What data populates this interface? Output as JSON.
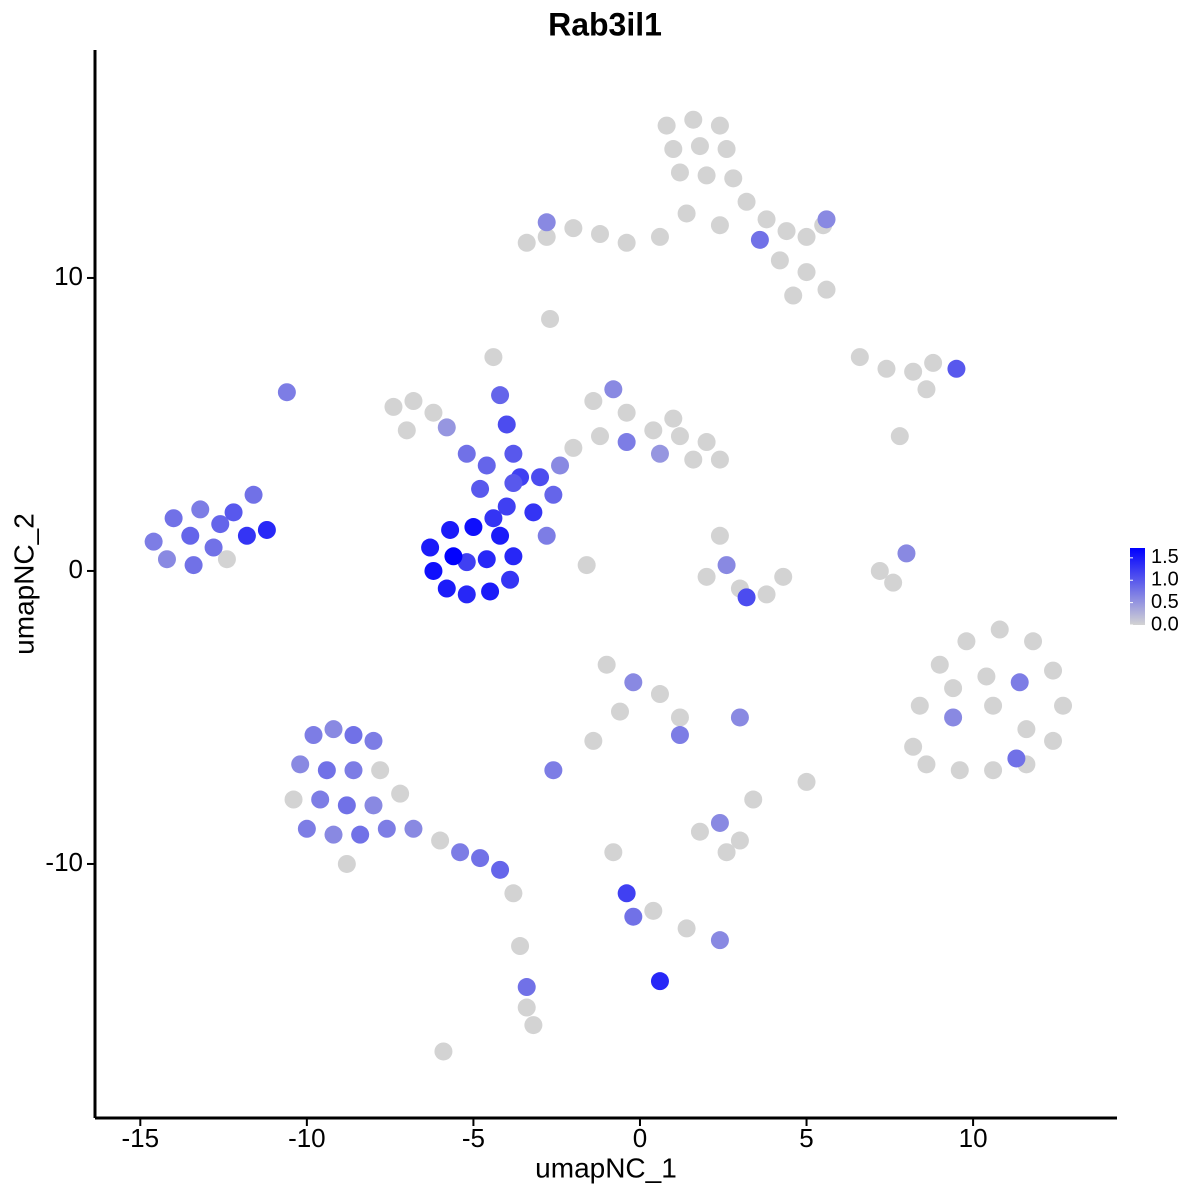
{
  "chart_data": {
    "type": "scatter",
    "title": "Rab3il1",
    "x_label": "umapNC_1",
    "y_label": "umapNC_2",
    "xlim": [
      -16.36,
      14.32
    ],
    "ylim": [
      -18.67,
      17.78
    ],
    "xticks": [
      -15,
      -10,
      -5,
      0,
      5,
      10
    ],
    "yticks": [
      -10,
      0,
      10
    ],
    "color_scale": {
      "low": "#d3d3d3",
      "high": "#0000ff",
      "lim": [
        0,
        1.72
      ],
      "ticks": [
        {
          "value": 0,
          "label": "0.0"
        },
        {
          "value": 0.5,
          "label": "0.5"
        },
        {
          "value": 1,
          "label": "1.0"
        },
        {
          "value": 1.5,
          "label": "1.5"
        }
      ]
    },
    "points": [
      [
        0.8,
        15.2,
        0
      ],
      [
        1.6,
        15.4,
        0
      ],
      [
        2.4,
        15.2,
        0
      ],
      [
        1.0,
        14.4,
        0
      ],
      [
        1.8,
        14.5,
        0
      ],
      [
        2.6,
        14.4,
        0
      ],
      [
        1.2,
        13.6,
        0
      ],
      [
        2.0,
        13.5,
        0
      ],
      [
        2.8,
        13.4,
        0
      ],
      [
        3.2,
        12.6,
        0
      ],
      [
        3.8,
        12.0,
        0
      ],
      [
        4.4,
        11.6,
        0
      ],
      [
        5.0,
        11.4,
        0
      ],
      [
        5.5,
        11.8,
        0
      ],
      [
        4.2,
        10.6,
        0
      ],
      [
        5.0,
        10.2,
        0
      ],
      [
        5.6,
        9.6,
        0
      ],
      [
        4.6,
        9.4,
        0
      ],
      [
        2.4,
        11.8,
        0
      ],
      [
        1.4,
        12.2,
        0
      ],
      [
        0.6,
        11.4,
        0
      ],
      [
        -0.4,
        11.2,
        0
      ],
      [
        -1.2,
        11.5,
        0
      ],
      [
        -2.0,
        11.7,
        0
      ],
      [
        -2.8,
        11.4,
        0
      ],
      [
        -3.4,
        11.2,
        0
      ],
      [
        -2.8,
        11.9,
        0.6
      ],
      [
        3.6,
        11.3,
        0.8
      ],
      [
        5.6,
        12.0,
        0.6
      ],
      [
        -2.7,
        8.6,
        0
      ],
      [
        -7.4,
        5.6,
        0
      ],
      [
        -6.8,
        5.8,
        0
      ],
      [
        -6.2,
        5.4,
        0
      ],
      [
        -7.0,
        4.8,
        0
      ],
      [
        -5.8,
        4.9,
        0.5
      ],
      [
        -4.4,
        7.3,
        0
      ],
      [
        -4.2,
        6.0,
        0.9
      ],
      [
        -4.0,
        5.0,
        1.1
      ],
      [
        -3.8,
        4.0,
        1.0
      ],
      [
        -3.6,
        3.2,
        1.2
      ],
      [
        -1.4,
        5.8,
        0
      ],
      [
        -0.8,
        6.2,
        0.6
      ],
      [
        -0.4,
        5.4,
        0
      ],
      [
        0.4,
        4.8,
        0
      ],
      [
        1.2,
        4.6,
        0
      ],
      [
        2.0,
        4.4,
        0
      ],
      [
        2.4,
        3.8,
        0
      ],
      [
        1.6,
        3.8,
        0
      ],
      [
        0.6,
        4.0,
        0.5
      ],
      [
        -0.4,
        4.4,
        0.7
      ],
      [
        -1.2,
        4.6,
        0
      ],
      [
        -2.0,
        4.2,
        0
      ],
      [
        -2.4,
        3.6,
        0.6
      ],
      [
        1.0,
        5.2,
        0
      ],
      [
        -5.2,
        4.0,
        0.8
      ],
      [
        -4.6,
        3.6,
        0.9
      ],
      [
        -3.8,
        3.0,
        1.0
      ],
      [
        -3.0,
        3.2,
        1.1
      ],
      [
        -2.6,
        2.6,
        0.9
      ],
      [
        -4.8,
        2.8,
        1.0
      ],
      [
        -4.0,
        2.2,
        1.2
      ],
      [
        -3.2,
        2.0,
        1.3
      ],
      [
        -2.8,
        1.2,
        0.7
      ],
      [
        -1.6,
        0.2,
        0
      ],
      [
        -6.3,
        0.8,
        1.5
      ],
      [
        -6.2,
        0.0,
        1.6
      ],
      [
        -5.8,
        -0.6,
        1.5
      ],
      [
        -5.2,
        -0.8,
        1.4
      ],
      [
        -4.5,
        -0.7,
        1.5
      ],
      [
        -3.9,
        -0.3,
        1.3
      ],
      [
        -3.8,
        0.5,
        1.4
      ],
      [
        -4.2,
        1.2,
        1.5
      ],
      [
        -5.0,
        1.5,
        1.6
      ],
      [
        -5.7,
        1.4,
        1.5
      ],
      [
        -5.2,
        0.3,
        1.2
      ],
      [
        -4.6,
        0.4,
        1.4
      ],
      [
        -5.6,
        0.5,
        1.7
      ],
      [
        -4.4,
        1.8,
        1.3
      ],
      [
        -14.6,
        1.0,
        0.7
      ],
      [
        -14.0,
        1.8,
        0.8
      ],
      [
        -13.2,
        2.1,
        0.7
      ],
      [
        -14.2,
        0.4,
        0.6
      ],
      [
        -13.4,
        0.2,
        0.8
      ],
      [
        -13.5,
        1.2,
        0.9
      ],
      [
        -12.8,
        0.8,
        0.8
      ],
      [
        -12.6,
        1.6,
        0.9
      ],
      [
        -12.4,
        0.4,
        0
      ],
      [
        -11.8,
        1.2,
        1.3
      ],
      [
        -11.2,
        1.4,
        1.4
      ],
      [
        -11.6,
        2.6,
        0.8
      ],
      [
        -12.2,
        2.0,
        1.0
      ],
      [
        -10.6,
        6.1,
        0.7
      ],
      [
        -9.8,
        -5.6,
        0.7
      ],
      [
        -9.2,
        -5.4,
        0.6
      ],
      [
        -8.6,
        -5.6,
        0.8
      ],
      [
        -8.0,
        -5.8,
        0.7
      ],
      [
        -10.2,
        -6.6,
        0.6
      ],
      [
        -9.4,
        -6.8,
        0.8
      ],
      [
        -8.6,
        -6.8,
        0.7
      ],
      [
        -7.8,
        -6.8,
        0
      ],
      [
        -10.4,
        -7.8,
        0
      ],
      [
        -9.6,
        -7.8,
        0.7
      ],
      [
        -8.8,
        -8.0,
        0.8
      ],
      [
        -8.0,
        -8.0,
        0.6
      ],
      [
        -7.2,
        -7.6,
        0
      ],
      [
        -10.0,
        -8.8,
        0.7
      ],
      [
        -9.2,
        -9.0,
        0.6
      ],
      [
        -8.4,
        -9.0,
        0.8
      ],
      [
        -7.6,
        -8.8,
        0.7
      ],
      [
        -6.8,
        -8.8,
        0.6
      ],
      [
        -6.0,
        -9.2,
        0
      ],
      [
        -5.4,
        -9.6,
        0.7
      ],
      [
        -4.8,
        -9.8,
        0.8
      ],
      [
        -4.2,
        -10.2,
        0.9
      ],
      [
        -8.8,
        -10.0,
        0
      ],
      [
        -3.8,
        -11.0,
        0
      ],
      [
        -3.6,
        -12.8,
        0
      ],
      [
        -3.4,
        -14.2,
        0.8
      ],
      [
        -3.4,
        -14.9,
        0
      ],
      [
        -3.2,
        -15.5,
        0
      ],
      [
        -5.9,
        -16.4,
        0
      ],
      [
        8.4,
        -4.6,
        0
      ],
      [
        9.0,
        -3.2,
        0
      ],
      [
        9.8,
        -2.4,
        0
      ],
      [
        10.8,
        -2.0,
        0
      ],
      [
        11.8,
        -2.4,
        0
      ],
      [
        12.4,
        -3.4,
        0
      ],
      [
        12.7,
        -4.6,
        0
      ],
      [
        12.4,
        -5.8,
        0
      ],
      [
        11.6,
        -6.6,
        0
      ],
      [
        10.6,
        -6.8,
        0
      ],
      [
        9.6,
        -6.8,
        0
      ],
      [
        8.6,
        -6.6,
        0
      ],
      [
        9.4,
        -5.0,
        0.6
      ],
      [
        10.6,
        -4.6,
        0
      ],
      [
        11.4,
        -3.8,
        0.7
      ],
      [
        10.4,
        -3.6,
        0
      ],
      [
        11.6,
        -5.4,
        0
      ],
      [
        9.4,
        -4.0,
        0
      ],
      [
        11.3,
        -6.4,
        0.8
      ],
      [
        8.2,
        -6.0,
        0
      ],
      [
        6.6,
        7.3,
        0
      ],
      [
        7.4,
        6.9,
        0
      ],
      [
        8.2,
        6.8,
        0
      ],
      [
        8.8,
        7.1,
        0
      ],
      [
        9.5,
        6.9,
        1.0
      ],
      [
        8.6,
        6.2,
        0
      ],
      [
        7.8,
        4.6,
        0
      ],
      [
        2.4,
        1.2,
        0
      ],
      [
        2.6,
        0.2,
        0.6
      ],
      [
        2.0,
        -0.2,
        0
      ],
      [
        3.0,
        -0.6,
        0
      ],
      [
        3.8,
        -0.8,
        0
      ],
      [
        4.3,
        -0.2,
        0
      ],
      [
        3.2,
        -0.9,
        1.1
      ],
      [
        8.0,
        0.6,
        0.6
      ],
      [
        7.6,
        -0.4,
        0
      ],
      [
        7.2,
        0.0,
        0
      ],
      [
        -1.0,
        -3.2,
        0
      ],
      [
        -0.2,
        -3.8,
        0.6
      ],
      [
        0.6,
        -4.2,
        0
      ],
      [
        1.2,
        -5.0,
        0
      ],
      [
        -0.6,
        -4.8,
        0
      ],
      [
        -1.4,
        -5.8,
        0
      ],
      [
        -2.6,
        -6.8,
        0.7
      ],
      [
        1.2,
        -5.6,
        0.7
      ],
      [
        3.0,
        -5.0,
        0.6
      ],
      [
        5.0,
        -7.2,
        0
      ],
      [
        1.8,
        -8.9,
        0
      ],
      [
        2.4,
        -8.6,
        0.6
      ],
      [
        3.0,
        -9.2,
        0
      ],
      [
        2.6,
        -9.6,
        0
      ],
      [
        -0.8,
        -9.6,
        0
      ],
      [
        -0.4,
        -11.0,
        1.2
      ],
      [
        -0.2,
        -11.8,
        0.8
      ],
      [
        0.4,
        -11.6,
        0
      ],
      [
        1.4,
        -12.2,
        0
      ],
      [
        2.4,
        -12.6,
        0.6
      ],
      [
        0.6,
        -14.0,
        1.4
      ],
      [
        3.4,
        -7.8,
        0
      ]
    ]
  }
}
